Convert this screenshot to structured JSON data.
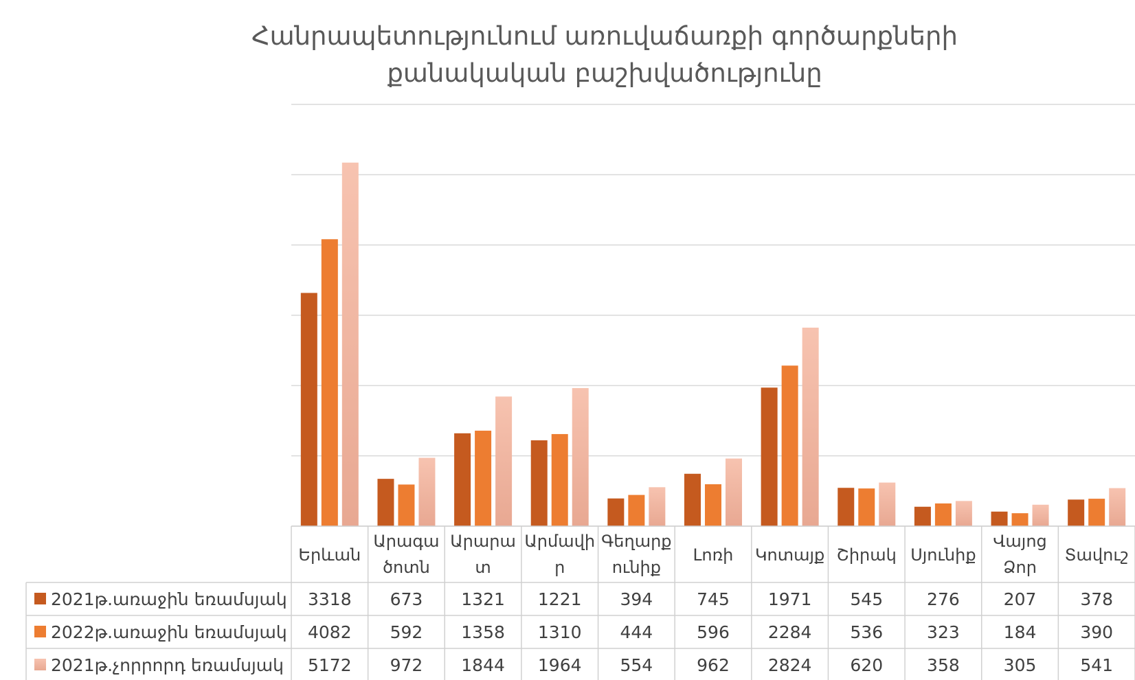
{
  "chart_data": {
    "type": "bar",
    "title": [
      "Հանրապետությունում առուվաճառքի գործարքների",
      "քանակական բաշխվածությունը"
    ],
    "categories": [
      [
        "Երևան"
      ],
      [
        "Արագա",
        "ծոտն"
      ],
      [
        "Արարա",
        "տ"
      ],
      [
        "Արմավի",
        "ր"
      ],
      [
        "Գեղարք",
        "ունիք"
      ],
      [
        "Լոռի"
      ],
      [
        "Կոտայք"
      ],
      [
        "Շիրակ"
      ],
      [
        "Սյունիք"
      ],
      [
        "Վայոց",
        "Ձոր"
      ],
      [
        "Տավուշ"
      ]
    ],
    "series": [
      {
        "name": "2021թ.առաջին եռամսյակ",
        "color": "#c55a1f",
        "values": [
          3318,
          673,
          1321,
          1221,
          394,
          745,
          1971,
          545,
          276,
          207,
          378
        ]
      },
      {
        "name": "2022թ.առաջին եռամսյակ",
        "color": "#ed7d31",
        "values": [
          4082,
          592,
          1358,
          1310,
          444,
          596,
          2284,
          536,
          323,
          184,
          390
        ]
      },
      {
        "name": "2021թ.չորրորդ եռամսյակ",
        "color": "#f4b6a0",
        "values": [
          5172,
          972,
          1844,
          1964,
          554,
          962,
          2824,
          620,
          358,
          305,
          541
        ]
      }
    ],
    "ylim": [
      0,
      6000
    ],
    "grid": true,
    "legend": "data-table"
  }
}
